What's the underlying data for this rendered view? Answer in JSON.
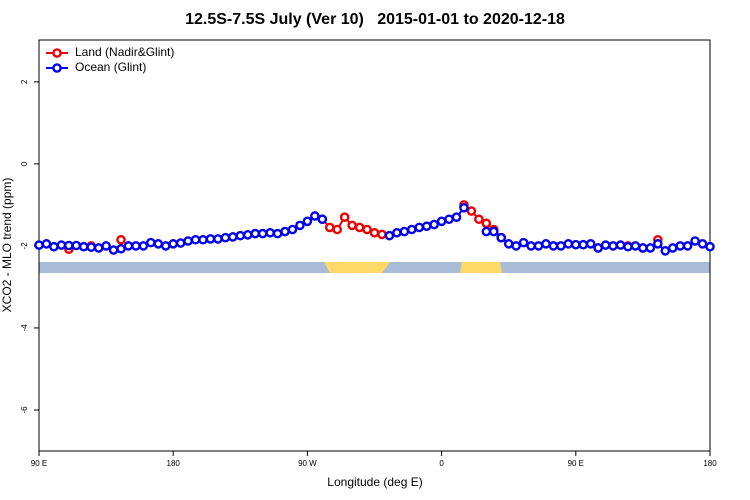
{
  "chart_data": {
    "type": "line",
    "title": "12.5S-7.5S July (Ver 10)   2015-01-01 to 2020-12-18",
    "x_label": "Longitude (deg E)",
    "y_label": "XCO2 - MLO trend (ppm)",
    "legend": "top-left",
    "xlim": [
      90,
      540
    ],
    "ylim": [
      -7,
      3.02
    ],
    "xticks": [
      {
        "value": 90,
        "label": "90 E"
      },
      180,
      {
        "value": 270,
        "label": "90 W"
      },
      {
        "value": 360,
        "label": "0"
      },
      {
        "value": 450,
        "label": "90 E"
      },
      {
        "value": 540,
        "label": "180"
      }
    ],
    "yticks": [
      -6,
      -4,
      -2,
      0,
      2
    ],
    "x": [
      90,
      95,
      100,
      105,
      110,
      115,
      120,
      125,
      130,
      135,
      140,
      145,
      150,
      155,
      160,
      165,
      170,
      175,
      180,
      185,
      190,
      195,
      200,
      205,
      210,
      215,
      220,
      225,
      230,
      235,
      240,
      245,
      250,
      255,
      260,
      265,
      270,
      275,
      280,
      285,
      290,
      295,
      300,
      305,
      310,
      315,
      320,
      325,
      330,
      335,
      340,
      345,
      350,
      355,
      360,
      365,
      370,
      375,
      380,
      385,
      390,
      395,
      400,
      405,
      410,
      415,
      420,
      425,
      430,
      435,
      440,
      445,
      450,
      455,
      460,
      465,
      470,
      475,
      480,
      485,
      490,
      495,
      500,
      505,
      510,
      515,
      520,
      525,
      530,
      535,
      540
    ],
    "series": [
      {
        "name": "Land (Nadir&Glint)",
        "color": "#ee0000",
        "values": [
          null,
          null,
          null,
          null,
          -2.08,
          null,
          null,
          -2.0,
          null,
          null,
          null,
          -1.85,
          null,
          null,
          null,
          null,
          null,
          null,
          null,
          null,
          null,
          null,
          null,
          null,
          null,
          null,
          -1.78,
          null,
          null,
          null,
          null,
          null,
          null,
          null,
          null,
          null,
          null,
          null,
          -1.35,
          -1.55,
          -1.6,
          -1.3,
          -1.5,
          -1.55,
          -1.6,
          -1.68,
          -1.72,
          null,
          null,
          null,
          null,
          null,
          null,
          null,
          null,
          null,
          null,
          -1.0,
          -1.15,
          -1.35,
          -1.45,
          -1.6,
          -1.8,
          null,
          null,
          null,
          null,
          null,
          null,
          null,
          null,
          null,
          null,
          null,
          null,
          -2.05,
          null,
          null,
          null,
          -2.0,
          null,
          -2.05,
          null,
          -1.85,
          null,
          null,
          null,
          null,
          null,
          null,
          null
        ]
      },
      {
        "name": "Ocean (Glint)",
        "color": "#0000ee",
        "values": [
          -1.98,
          -1.95,
          -2.02,
          -1.98,
          -1.99,
          -1.99,
          -2.02,
          -2.03,
          -2.05,
          -2.0,
          -2.1,
          -2.07,
          -2.0,
          -2.0,
          -2.0,
          -1.92,
          -1.95,
          -2.0,
          -1.95,
          -1.93,
          -1.88,
          -1.85,
          -1.85,
          -1.83,
          -1.83,
          -1.8,
          -1.78,
          -1.75,
          -1.73,
          -1.7,
          -1.7,
          -1.68,
          -1.7,
          -1.65,
          -1.6,
          -1.5,
          -1.4,
          -1.27,
          -1.35,
          null,
          null,
          null,
          null,
          null,
          null,
          null,
          null,
          -1.75,
          -1.68,
          -1.65,
          -1.6,
          -1.55,
          -1.52,
          -1.48,
          -1.4,
          -1.35,
          -1.3,
          -1.07,
          null,
          null,
          -1.65,
          -1.65,
          -1.8,
          -1.95,
          -2.0,
          -1.92,
          -2.0,
          -2.0,
          -1.95,
          -2.0,
          -2.0,
          -1.95,
          -1.97,
          -1.97,
          -1.95,
          -2.05,
          -1.98,
          -2.0,
          -1.98,
          -2.02,
          -2.0,
          -2.05,
          -2.05,
          -1.95,
          -2.12,
          -2.05,
          -2.0,
          -2.0,
          -1.88,
          -1.95,
          -2.02
        ]
      }
    ]
  }
}
